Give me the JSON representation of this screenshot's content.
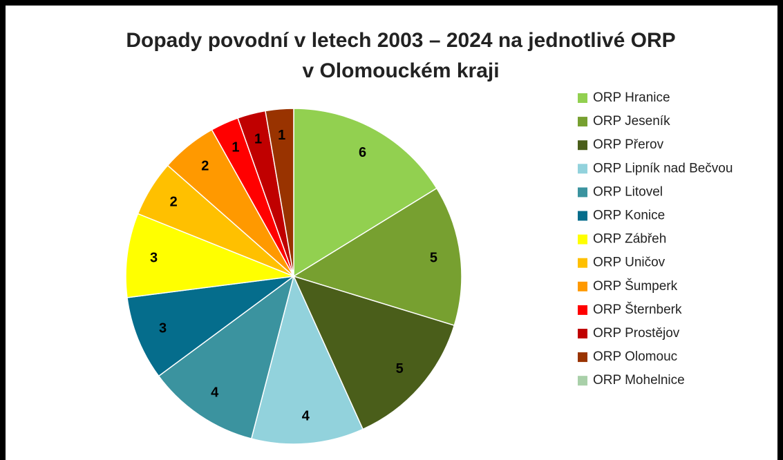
{
  "chart_data": {
    "type": "pie",
    "title": [
      "Dopady povodní v letech 2003 – 2024 na jednotlivé ORP",
      "v Olomouckém kraji"
    ],
    "categories": [
      "ORP Hranice",
      "ORP Jeseník",
      "ORP Přerov",
      "ORP Lipník nad Bečvou",
      "ORP Litovel",
      "ORP Konice",
      "ORP Zábřeh",
      "ORP Uničov",
      "ORP Šumperk",
      "ORP Šternberk",
      "ORP Prostějov",
      "ORP Olomouc",
      "ORP Mohelnice"
    ],
    "values": [
      6,
      5,
      5,
      4,
      4,
      3,
      3,
      2,
      2,
      1,
      1,
      1,
      0
    ],
    "colors": [
      "#92d050",
      "#77a030",
      "#4a5e1a",
      "#92d2dc",
      "#3b939f",
      "#056d8c",
      "#ffff00",
      "#ffc000",
      "#ff9900",
      "#ff0000",
      "#c00000",
      "#993300",
      "#a9d0a9"
    ],
    "legend": "right"
  }
}
